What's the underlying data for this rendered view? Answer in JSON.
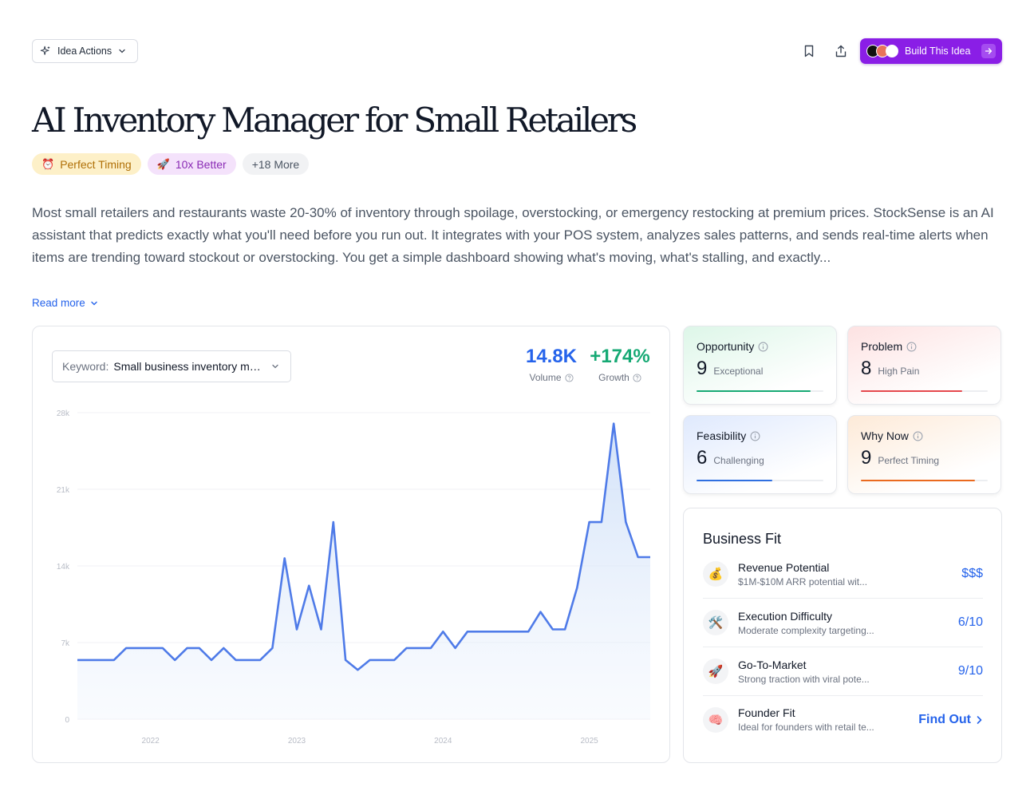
{
  "topbar": {
    "idea_actions_label": "Idea Actions",
    "build_label": "Build This Idea",
    "build_avatars": [
      "avatar-1",
      "avatar-2",
      "avatar-3"
    ]
  },
  "title": "AI Inventory Manager for Small Retailers",
  "tags": [
    {
      "emoji": "⏰",
      "label": "Perfect Timing"
    },
    {
      "emoji": "🚀",
      "label": "10x Better"
    },
    {
      "label": "+18 More"
    }
  ],
  "description": "Most small retailers and restaurants waste 20-30% of inventory through spoilage, overstocking, or emergency restocking at premium prices. StockSense is an AI assistant that predicts exactly what you'll need before you run out. It integrates with your POS system, analyzes sales patterns, and sends real-time alerts when items are trending toward stockout or overstocking. You get a simple dashboard showing what's moving, what's stalling, and exactly...",
  "read_more": "Read more",
  "keyword": {
    "label": "Keyword:",
    "value": "Small business inventory management"
  },
  "metrics": {
    "volume": {
      "value": "14.8K",
      "label": "Volume"
    },
    "growth": {
      "value": "+174%",
      "label": "Growth"
    }
  },
  "chart_data": {
    "type": "area",
    "title": "",
    "xlabel": "",
    "ylabel": "",
    "ylim": [
      0,
      28000
    ],
    "y_ticks": [
      "0",
      "7k",
      "14k",
      "21k",
      "28k"
    ],
    "y_tick_values": [
      0,
      7000,
      14000,
      21000,
      28000
    ],
    "x_ticks": [
      "2022",
      "2023",
      "2024",
      "2025"
    ],
    "x_tick_values": [
      "2022-01",
      "2023-01",
      "2024-01",
      "2025-01"
    ],
    "grid": true,
    "color": "#4f7be8",
    "series": [
      {
        "x": [
          "2021-07",
          "2021-08",
          "2021-09",
          "2021-10",
          "2021-11",
          "2021-12",
          "2022-01",
          "2022-02",
          "2022-03",
          "2022-04",
          "2022-05",
          "2022-06",
          "2022-07",
          "2022-08",
          "2022-09",
          "2022-10",
          "2022-11",
          "2022-12",
          "2023-01",
          "2023-02",
          "2023-03",
          "2023-04",
          "2023-05",
          "2023-06",
          "2023-07",
          "2023-08",
          "2023-09",
          "2023-10",
          "2023-11",
          "2023-12",
          "2024-01",
          "2024-02",
          "2024-03",
          "2024-04",
          "2024-05",
          "2024-06",
          "2024-07",
          "2024-08",
          "2024-09",
          "2024-10",
          "2024-11",
          "2024-12",
          "2025-01",
          "2025-02",
          "2025-03",
          "2025-04",
          "2025-05",
          "2025-06"
        ],
        "values": [
          5400,
          5400,
          5400,
          5400,
          6500,
          6500,
          6500,
          6500,
          5400,
          6500,
          6500,
          5400,
          6500,
          5400,
          5400,
          5400,
          6500,
          14700,
          8200,
          12200,
          8200,
          18000,
          5400,
          4500,
          5400,
          5400,
          5400,
          6500,
          6500,
          6500,
          8000,
          6500,
          8000,
          8000,
          8000,
          8000,
          8000,
          8000,
          9800,
          8200,
          8200,
          12000,
          18000,
          18000,
          27000,
          18000,
          14800,
          14800
        ]
      }
    ]
  },
  "scores": [
    {
      "key": "opportunity",
      "title": "Opportunity",
      "score": "9",
      "desc": "Exceptional",
      "fraction": 0.9,
      "color": "#16a974"
    },
    {
      "key": "problem",
      "title": "Problem",
      "score": "8",
      "desc": "High Pain",
      "fraction": 0.8,
      "color": "#e5484d"
    },
    {
      "key": "feasibility",
      "title": "Feasibility",
      "score": "6",
      "desc": "Challenging",
      "fraction": 0.6,
      "color": "#2f6fe0"
    },
    {
      "key": "whynow",
      "title": "Why Now",
      "score": "9",
      "desc": "Perfect Timing",
      "fraction": 0.9,
      "color": "#ea6a1f"
    }
  ],
  "business_fit": {
    "title": "Business Fit",
    "rows": [
      {
        "icon": "money-bag-icon",
        "emoji": "💰",
        "label": "Revenue Potential",
        "sub": "$1M-$10M ARR potential wit...",
        "value": "$$$"
      },
      {
        "icon": "tools-icon",
        "emoji": "🛠️",
        "label": "Execution Difficulty",
        "sub": "Moderate complexity targeting...",
        "value": "6/10"
      },
      {
        "icon": "rocket-icon",
        "emoji": "🚀",
        "label": "Go-To-Market",
        "sub": "Strong traction with viral pote...",
        "value": "9/10"
      },
      {
        "icon": "brain-icon",
        "emoji": "🧠",
        "label": "Founder Fit",
        "sub": "Ideal for founders with retail te...",
        "value": "Find Out"
      }
    ]
  }
}
